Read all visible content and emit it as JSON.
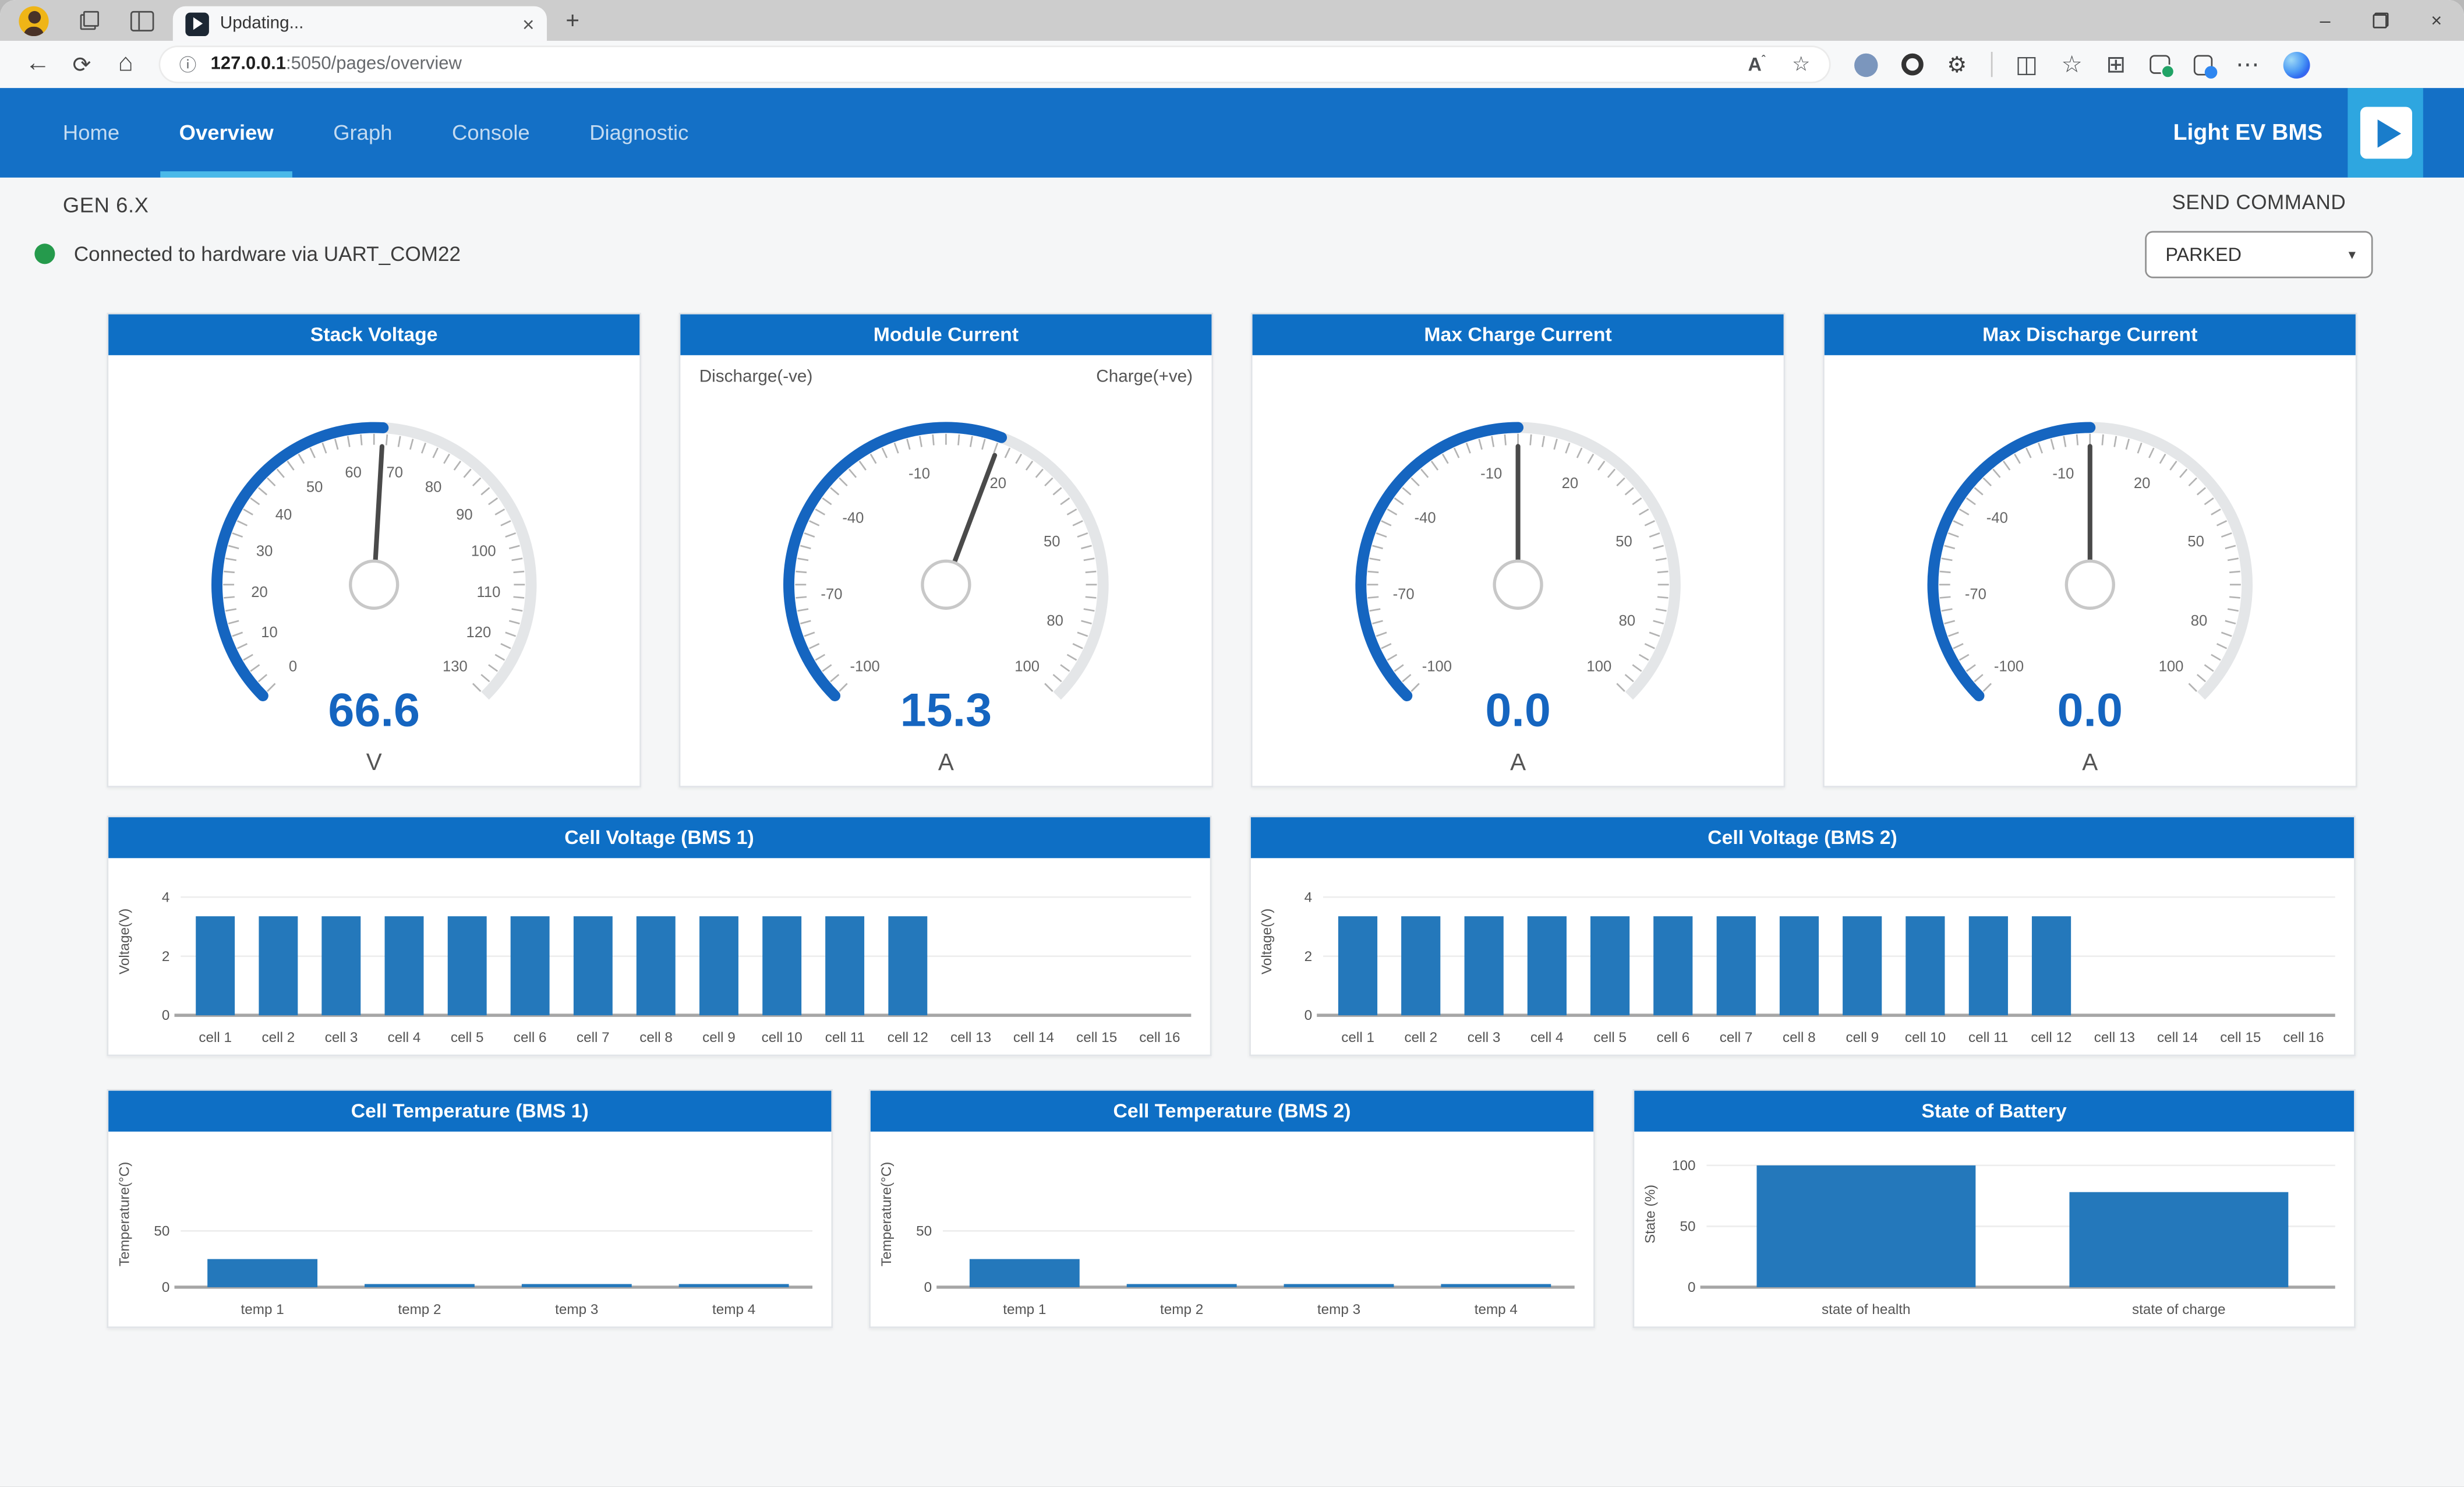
{
  "browser": {
    "tab_title": "Updating...",
    "url": {
      "host": "127.0.0.1",
      "path": ":5050/pages/overview"
    }
  },
  "icons": {
    "back": "←",
    "refresh": "⟳",
    "home": "⌂",
    "info": "ⓘ",
    "read_aloud": "A",
    "read_aloud_mark": "ˆ",
    "star": "☆",
    "split": "◫",
    "collections": "⊞",
    "more": "⋯",
    "minimize": "–",
    "close": "×",
    "new_tab": "+",
    "caret": "▾"
  },
  "navbar": {
    "items": [
      "Home",
      "Overview",
      "Graph",
      "Console",
      "Diagnostic"
    ],
    "active": "Overview",
    "brand": "Light EV BMS"
  },
  "page": {
    "gen_label": "GEN 6.X",
    "status_text": "Connected to hardware via UART_COM22",
    "send_command_label": "SEND COMMAND",
    "command_value": "PARKED"
  },
  "colors": {
    "navbar": "#1470c6",
    "card_header": "#0e6fc5",
    "active_underline": "#4ab9e9",
    "play_button": "#2ea6e0",
    "gauge": "#1565c0",
    "bar": "#2478bb",
    "status_green": "#259a4c"
  },
  "chart_data": [
    {
      "type": "gauge",
      "title": "Stack Voltage",
      "min": 0,
      "max": 130,
      "value": 66.6,
      "display": "66.6",
      "unit": "V",
      "ticks": [
        0,
        10,
        20,
        30,
        40,
        50,
        60,
        70,
        80,
        90,
        100,
        110,
        120,
        130
      ]
    },
    {
      "type": "gauge",
      "title": "Module Current",
      "min": -100,
      "max": 100,
      "value": 15.3,
      "display": "15.3",
      "unit": "A",
      "ticks": [
        -100,
        -70,
        -40,
        -10,
        20,
        50,
        80,
        100
      ],
      "corner_left": "Discharge(-ve)",
      "corner_right": "Charge(+ve)"
    },
    {
      "type": "gauge",
      "title": "Max Charge Current",
      "min": -100,
      "max": 100,
      "value": 0,
      "display": "0.0",
      "unit": "A",
      "ticks": [
        -100,
        -70,
        -40,
        -10,
        20,
        50,
        80,
        100
      ]
    },
    {
      "type": "gauge",
      "title": "Max Discharge Current",
      "min": -100,
      "max": 100,
      "value": 0,
      "display": "0.0",
      "unit": "A",
      "ticks": [
        -100,
        -70,
        -40,
        -10,
        20,
        50,
        80,
        100
      ]
    },
    {
      "type": "bar",
      "title": "Cell Voltage (BMS 1)",
      "ylabel": "Voltage(V)",
      "ymax": 5,
      "yticks": [
        0,
        2,
        4
      ],
      "categories": [
        "cell 1",
        "cell 2",
        "cell 3",
        "cell 4",
        "cell 5",
        "cell 6",
        "cell 7",
        "cell 8",
        "cell 9",
        "cell 10",
        "cell 11",
        "cell 12",
        "cell 13",
        "cell 14",
        "cell 15",
        "cell 16"
      ],
      "values": [
        3.35,
        3.35,
        3.35,
        3.35,
        3.35,
        3.35,
        3.35,
        3.35,
        3.35,
        3.35,
        3.35,
        3.35,
        0,
        0,
        0,
        0
      ]
    },
    {
      "type": "bar",
      "title": "Cell Voltage (BMS 2)",
      "ylabel": "Voltage(V)",
      "ymax": 5,
      "yticks": [
        0,
        2,
        4
      ],
      "categories": [
        "cell 1",
        "cell 2",
        "cell 3",
        "cell 4",
        "cell 5",
        "cell 6",
        "cell 7",
        "cell 8",
        "cell 9",
        "cell 10",
        "cell 11",
        "cell 12",
        "cell 13",
        "cell 14",
        "cell 15",
        "cell 16"
      ],
      "values": [
        3.35,
        3.35,
        3.35,
        3.35,
        3.35,
        3.35,
        3.35,
        3.35,
        3.35,
        3.35,
        3.35,
        3.35,
        0,
        0,
        0,
        0
      ]
    },
    {
      "type": "bar",
      "title": "Cell Temperature (BMS 1)",
      "ylabel": "Temperature(°C)",
      "ymax": 130,
      "yticks": [
        0,
        50
      ],
      "categories": [
        "temp 1",
        "temp 2",
        "temp 3",
        "temp 4"
      ],
      "values": [
        25,
        2,
        2,
        2
      ]
    },
    {
      "type": "bar",
      "title": "Cell Temperature (BMS 2)",
      "ylabel": "Temperature(°C)",
      "ymax": 130,
      "yticks": [
        0,
        50
      ],
      "categories": [
        "temp 1",
        "temp 2",
        "temp 3",
        "temp 4"
      ],
      "values": [
        25,
        2,
        2,
        2
      ]
    },
    {
      "type": "bar",
      "title": "State of Battery",
      "ylabel": "State (%)",
      "ymax": 120,
      "yticks": [
        0,
        50,
        100
      ],
      "categories": [
        "state of health",
        "state of charge"
      ],
      "values": [
        100,
        78
      ]
    }
  ]
}
